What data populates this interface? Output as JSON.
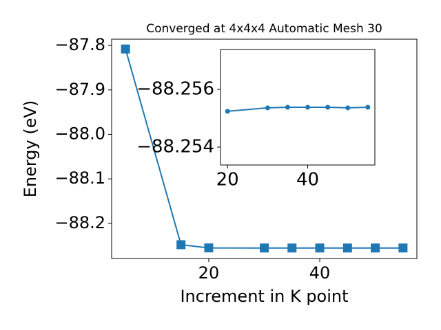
{
  "chart_data": [
    {
      "type": "line",
      "title": "Converged at 4x4x4 Automatic Mesh 30",
      "x_label": "Increment in K point",
      "y_label": "Energy (eV)",
      "marker": "square",
      "color": "#1f77b4",
      "x": [
        5,
        15,
        20,
        30,
        35,
        40,
        45,
        50,
        55
      ],
      "values": [
        -87.808,
        -88.248,
        -88.2552,
        -88.2554,
        -88.2554,
        -88.2554,
        -88.2554,
        -88.2554,
        -88.2554
      ],
      "xlim": [
        2.5,
        57.5
      ],
      "xticks": [
        20,
        40
      ],
      "ylim": [
        -88.279,
        -87.786
      ],
      "yticks": [
        {
          "value": -87.8,
          "label": "−87.8"
        },
        {
          "value": -87.9,
          "label": "−87.9"
        },
        {
          "value": -88.0,
          "label": "−88.0"
        },
        {
          "value": -88.1,
          "label": "−88.1"
        },
        {
          "value": -88.2,
          "label": "−88.2"
        }
      ]
    },
    {
      "type": "line",
      "marker": "circle",
      "color": "#1f77b4",
      "x": [
        20,
        30,
        35,
        40,
        45,
        50,
        55
      ],
      "values": [
        -88.25524,
        -88.25536,
        -88.25538,
        -88.25538,
        -88.25538,
        -88.25536,
        -88.25538
      ],
      "xlim": [
        18.25,
        56.75
      ],
      "xticks": [
        20,
        40
      ],
      "ylim": [
        -88.25338,
        -88.25738
      ],
      "yticks": [
        {
          "value": -88.256,
          "label": "−88.256"
        },
        {
          "value": -88.254,
          "label": "−88.254"
        }
      ]
    }
  ]
}
